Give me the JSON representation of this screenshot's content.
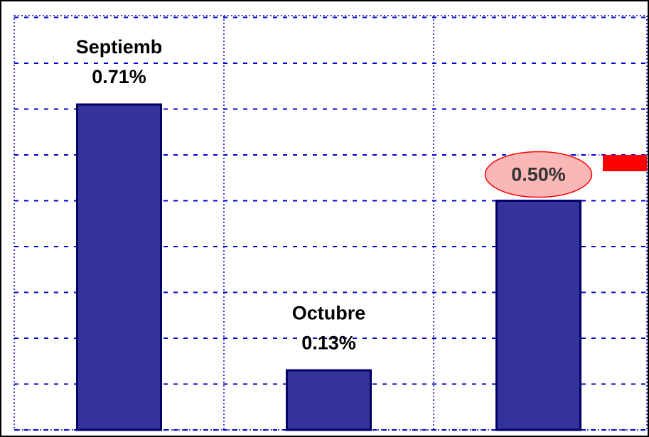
{
  "chart_data": {
    "type": "bar",
    "categories": [
      "Septiemb",
      "Octubre",
      null
    ],
    "values": [
      0.71,
      0.13,
      0.5
    ],
    "value_labels": [
      "0.71%",
      "0.13%",
      "0.50%"
    ],
    "color": "#333399",
    "highlight_color": "#ff0000",
    "highlight_index": 2,
    "reference": {
      "value": 0.6,
      "color": "#ff0000"
    },
    "ylim": [
      0,
      0.9
    ],
    "yticks": [
      0,
      0.1,
      0.2,
      0.3,
      0.4,
      0.5,
      0.6,
      0.7,
      0.8,
      0.9
    ],
    "grid": true
  }
}
